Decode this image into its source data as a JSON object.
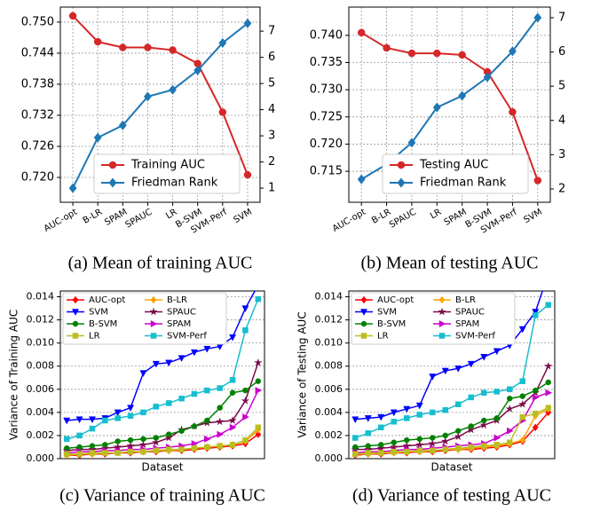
{
  "chart_data": [
    {
      "type": "line",
      "caption": "(a) Mean of training AUC",
      "categories": [
        "AUC-opt",
        "B-LR",
        "SPAM",
        "SPAUC",
        "LR",
        "B-SVM",
        "SVM-Perf",
        "SVM"
      ],
      "series": [
        {
          "name": "Training AUC",
          "color": "#d62728",
          "marker": "o",
          "values": [
            0.7512,
            0.7462,
            0.7451,
            0.7451,
            0.7446,
            0.742,
            0.7326,
            0.7205
          ]
        },
        {
          "name": "Friedman Rank",
          "color": "#1f77b4",
          "marker": "D",
          "axis": "y2",
          "values": [
            1.0,
            2.93,
            3.4,
            4.5,
            4.76,
            5.5,
            6.55,
            7.3
          ]
        }
      ],
      "ylim": [
        0.7152,
        0.7529
      ],
      "yticks": [
        {
          "value": 0.72,
          "label": "0.720"
        },
        0.726,
        0.732,
        0.738,
        0.744,
        {
          "value": 0.75,
          "label": "0.750"
        }
      ],
      "y2lim": [
        0.46,
        7.92
      ],
      "y2ticks": [
        1,
        2,
        3,
        4,
        5,
        6,
        7
      ],
      "ycolor": "#d62728",
      "y2color": "#1f77b4",
      "grid": true,
      "legend": "lower center"
    },
    {
      "type": "line",
      "caption": "(b) Mean of testing AUC",
      "categories": [
        "AUC-opt",
        "B-LR",
        "SPAUC",
        "LR",
        "SPAM",
        "B-SVM",
        "SVM-Perf",
        "SVM"
      ],
      "series": [
        {
          "name": "Testing AUC",
          "color": "#d62728",
          "marker": "o",
          "values": [
            0.7405,
            0.7377,
            0.7367,
            0.7367,
            0.7364,
            0.7333,
            0.7259,
            0.7133
          ]
        },
        {
          "name": "Friedman Rank",
          "color": "#1f77b4",
          "marker": "D",
          "axis": "y2",
          "values": [
            2.28,
            2.72,
            3.35,
            4.38,
            4.72,
            5.26,
            6.02,
            7.0
          ]
        }
      ],
      "ylim": [
        0.7093,
        0.7452
      ],
      "yticks": [
        {
          "value": 0.715,
          "label": "0.715"
        },
        {
          "value": 0.72,
          "label": "0.720"
        },
        0.725,
        {
          "value": 0.73,
          "label": "0.730"
        },
        0.735,
        {
          "value": 0.74,
          "label": "0.740"
        }
      ],
      "y2lim": [
        1.61,
        7.31
      ],
      "y2ticks": [
        2,
        3,
        4,
        5,
        6,
        7
      ],
      "ycolor": "#d62728",
      "y2color": "#1f77b4",
      "grid": true,
      "legend": "lower center"
    },
    {
      "type": "line",
      "caption": "(c) Variance of training AUC",
      "ylabel": "Variance of Training AUC",
      "xlabel": "Dataset",
      "categories": [
        null,
        null,
        null,
        null,
        null,
        null,
        null,
        null,
        null,
        null,
        null,
        null,
        null,
        null,
        null,
        null
      ],
      "series": [
        {
          "name": "AUC-opt",
          "color": "#ff0000",
          "marker": "D",
          "values": [
            0.0003,
            0.0003,
            0.0004,
            0.0004,
            0.0005,
            0.0005,
            0.0006,
            0.0006,
            0.0007,
            0.0007,
            0.0008,
            0.0009,
            0.001,
            0.0011,
            0.0013,
            0.0021
          ]
        },
        {
          "name": "B-LR",
          "color": "#ffa500",
          "marker": "D",
          "values": [
            0.0003,
            0.0004,
            0.0004,
            0.0005,
            0.0005,
            0.0006,
            0.0006,
            0.0007,
            0.0007,
            0.0008,
            0.0009,
            0.001,
            0.0011,
            0.0012,
            0.0015,
            0.0025
          ]
        },
        {
          "name": "SVM",
          "color": "#0000ff",
          "marker": "v",
          "values": [
            0.0033,
            0.0034,
            0.0034,
            0.0035,
            0.004,
            0.0044,
            0.0074,
            0.0082,
            0.0083,
            0.0087,
            0.0092,
            0.0095,
            0.0097,
            0.0105,
            0.013,
            0.015
          ]
        },
        {
          "name": "SPAUC",
          "color": "#7a0a4a",
          "marker": "*",
          "values": [
            0.0007,
            0.0008,
            0.0008,
            0.0009,
            0.001,
            0.0011,
            0.0012,
            0.0014,
            0.0018,
            0.0025,
            0.0028,
            0.0031,
            0.0032,
            0.0033,
            0.005,
            0.0083
          ]
        },
        {
          "name": "B-SVM",
          "color": "#008000",
          "marker": "o",
          "values": [
            0.0009,
            0.001,
            0.0011,
            0.0012,
            0.0015,
            0.0016,
            0.0017,
            0.0018,
            0.0021,
            0.0024,
            0.0028,
            0.0033,
            0.0044,
            0.0057,
            0.0059,
            0.0067
          ]
        },
        {
          "name": "SPAM",
          "color": "#cc00cc",
          "marker": ">",
          "values": [
            0.0005,
            0.0006,
            0.0006,
            0.0007,
            0.0007,
            0.0008,
            0.0008,
            0.0009,
            0.001,
            0.0011,
            0.0013,
            0.0017,
            0.0021,
            0.0027,
            0.0036,
            0.0059
          ]
        },
        {
          "name": "LR",
          "color": "#bcbd22",
          "marker": "s",
          "values": [
            0.0004,
            0.0004,
            0.0005,
            0.0005,
            0.0005,
            0.0006,
            0.0006,
            0.0007,
            0.0008,
            0.0008,
            0.0009,
            0.001,
            0.0011,
            0.0012,
            0.0016,
            0.0027
          ]
        },
        {
          "name": "SVM-Perf",
          "color": "#17becf",
          "marker": "s",
          "values": [
            0.0017,
            0.002,
            0.0026,
            0.0033,
            0.0035,
            0.0037,
            0.004,
            0.0045,
            0.0048,
            0.0052,
            0.0056,
            0.0059,
            0.0061,
            0.0068,
            0.0111,
            0.0138
          ]
        }
      ],
      "ylim": [
        0,
        0.0145
      ],
      "yticks": [
        {
          "value": 0,
          "label": "0.000"
        },
        0.002,
        0.004,
        0.006,
        0.008,
        {
          "value": 0.01,
          "label": "0.010"
        },
        0.012,
        0.014
      ],
      "grid": true,
      "legend": "upper left"
    },
    {
      "type": "line",
      "caption": "(d) Variance of testing AUC",
      "ylabel": "Variance of Testing AUC",
      "xlabel": "Dataset",
      "categories": [
        null,
        null,
        null,
        null,
        null,
        null,
        null,
        null,
        null,
        null,
        null,
        null,
        null,
        null,
        null,
        null
      ],
      "series": [
        {
          "name": "AUC-opt",
          "color": "#ff0000",
          "marker": "D",
          "values": [
            0.0003,
            0.0004,
            0.0004,
            0.0005,
            0.0005,
            0.0006,
            0.0006,
            0.0007,
            0.0008,
            0.0008,
            0.0009,
            0.001,
            0.0012,
            0.0015,
            0.0027,
            0.004
          ]
        },
        {
          "name": "B-LR",
          "color": "#ffa500",
          "marker": "D",
          "values": [
            0.0004,
            0.0004,
            0.0005,
            0.0005,
            0.0006,
            0.0006,
            0.0007,
            0.0008,
            0.0008,
            0.0009,
            0.001,
            0.0011,
            0.0013,
            0.0016,
            0.0037,
            0.0043
          ]
        },
        {
          "name": "SVM",
          "color": "#0000ff",
          "marker": "v",
          "values": [
            0.0034,
            0.0035,
            0.0036,
            0.004,
            0.0043,
            0.0046,
            0.0071,
            0.0076,
            0.0078,
            0.0082,
            0.0088,
            0.0093,
            0.0098,
            0.0112,
            0.0127,
            0.016
          ]
        },
        {
          "name": "SPAUC",
          "color": "#7a0a4a",
          "marker": "*",
          "values": [
            0.0008,
            0.0008,
            0.0009,
            0.001,
            0.0011,
            0.0012,
            0.0013,
            0.0015,
            0.0019,
            0.0025,
            0.0029,
            0.0033,
            0.0043,
            0.0047,
            0.0057,
            0.008
          ]
        },
        {
          "name": "B-SVM",
          "color": "#008000",
          "marker": "o",
          "values": [
            0.001,
            0.0011,
            0.0012,
            0.0014,
            0.0016,
            0.0017,
            0.0018,
            0.002,
            0.0024,
            0.0028,
            0.0033,
            0.0035,
            0.0052,
            0.0054,
            0.0059,
            0.0066
          ]
        },
        {
          "name": "SPAM",
          "color": "#cc00cc",
          "marker": ">",
          "values": [
            0.0005,
            0.0006,
            0.0006,
            0.0007,
            0.0008,
            0.0008,
            0.0009,
            0.001,
            0.0011,
            0.0012,
            0.0013,
            0.0018,
            0.0024,
            0.0033,
            0.0053,
            0.0057
          ]
        },
        {
          "name": "LR",
          "color": "#bcbd22",
          "marker": "s",
          "values": [
            0.0004,
            0.0005,
            0.0005,
            0.0006,
            0.0006,
            0.0007,
            0.0007,
            0.0008,
            0.0009,
            0.001,
            0.0011,
            0.0012,
            0.0014,
            0.0036,
            0.0039,
            0.0044
          ]
        },
        {
          "name": "SVM-Perf",
          "color": "#17becf",
          "marker": "s",
          "values": [
            0.0018,
            0.0022,
            0.0027,
            0.0032,
            0.0035,
            0.0038,
            0.004,
            0.0042,
            0.0047,
            0.0053,
            0.0057,
            0.0058,
            0.006,
            0.0067,
            0.0124,
            0.0133
          ]
        }
      ],
      "ylim": [
        0,
        0.0145
      ],
      "yticks": [
        {
          "value": 0,
          "label": "0.000"
        },
        0.002,
        0.004,
        0.006,
        0.008,
        {
          "value": 0.01,
          "label": "0.010"
        },
        0.012,
        0.014
      ],
      "grid": true,
      "legend": "upper left"
    }
  ]
}
